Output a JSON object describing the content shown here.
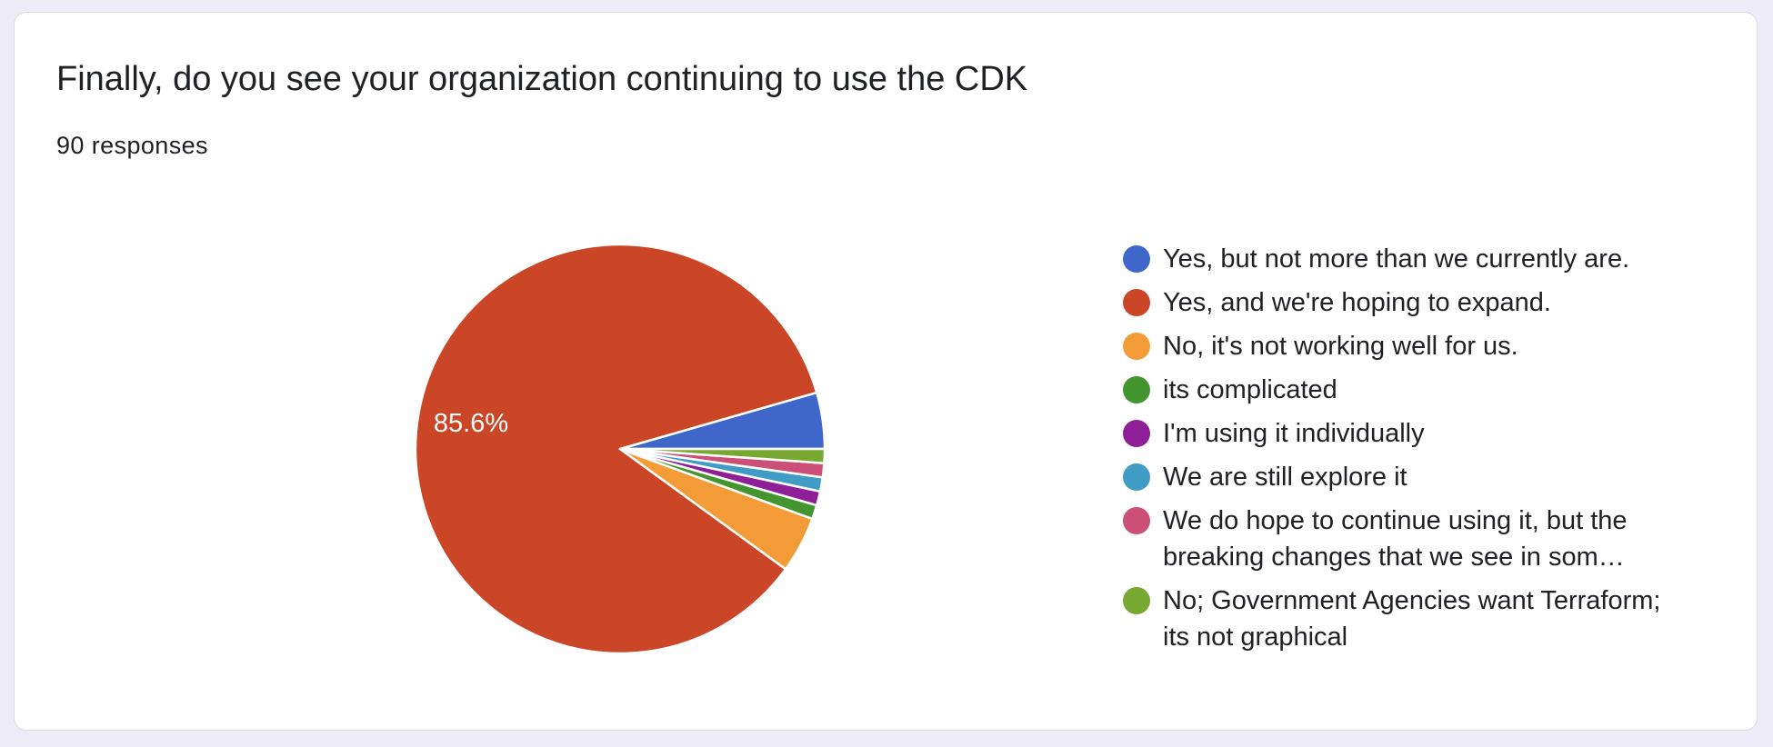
{
  "header": {
    "title": "Finally, do you see your organization continuing to use the CDK",
    "responses": "90 responses"
  },
  "chart_data": {
    "type": "pie",
    "title": "Finally, do you see your organization continuing to use the CDK",
    "total_responses": 90,
    "slices": [
      {
        "label": "Yes, but not more than we currently are.",
        "count": 4,
        "color": "#3f66c9"
      },
      {
        "label": "Yes, and we're hoping to expand.",
        "count": 77,
        "color": "#ca4626",
        "display": "85.6%"
      },
      {
        "label": "No, it's not working well for us.",
        "count": 4,
        "color": "#f39c37"
      },
      {
        "label": "its complicated",
        "count": 1,
        "color": "#43952f"
      },
      {
        "label": "I'm using it individually",
        "count": 1,
        "color": "#8f1f97"
      },
      {
        "label": "We are still explore it",
        "count": 1,
        "color": "#409bc5"
      },
      {
        "label": "We do hope to continue using it, but the breaking changes that we see in som…",
        "count": 1,
        "color": "#cc4f77"
      },
      {
        "label": "No; Government Agencies want Terraform; its not graphical",
        "count": 1,
        "color": "#77a830"
      }
    ],
    "legend_position": "right"
  }
}
